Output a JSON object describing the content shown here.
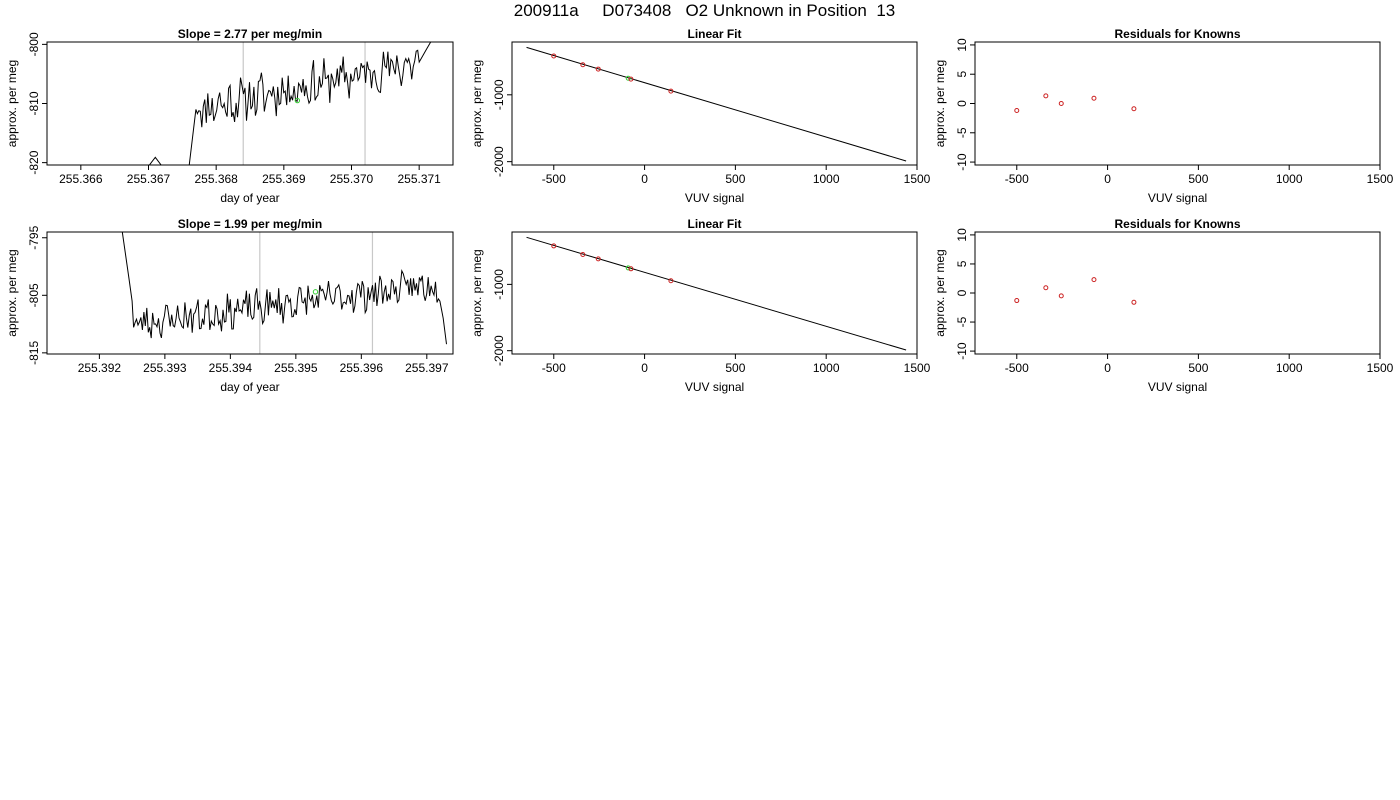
{
  "page_title": "200911a     D073408   O2 Unknown in Position  13",
  "colors": {
    "line": "#000000",
    "known_point": "#cc2222",
    "unknown_point": "#33cc33",
    "ref_line": "#c8c8c8"
  },
  "chart_data": [
    {
      "id": "ts1",
      "type": "line",
      "title": "Slope =  2.77  per meg/min",
      "xlabel": "day of year",
      "ylabel": "approx. per meg",
      "xlim": [
        255.3655,
        255.3715
      ],
      "ylim": [
        -820.4,
        -799.6
      ],
      "xticks": [
        "255.366",
        "255.367",
        "255.368",
        "255.369",
        "255.370",
        "255.371"
      ],
      "yticks": [
        "-800",
        "-810",
        "-820"
      ],
      "vlines": [
        255.3684,
        255.3702
      ],
      "unknown_marker": {
        "x": 255.3692,
        "y": -809.5
      },
      "noise": {
        "x0": 255.3677,
        "x1": 255.371,
        "n": 150,
        "start": -811,
        "end": -803,
        "amp": 3.2,
        "seed": 11
      },
      "pre": [
        [
          255.3655,
          -820.6
        ],
        [
          255.367,
          -820.6
        ],
        [
          255.3671,
          -819.1
        ],
        [
          255.3672,
          -820.6
        ],
        [
          255.3676,
          -820.6
        ],
        [
          255.3677,
          -811
        ]
      ],
      "post": [
        [
          255.371,
          -803
        ],
        [
          255.3711,
          -801
        ],
        [
          255.3712,
          -799
        ]
      ]
    },
    {
      "id": "fit1",
      "type": "scatter",
      "title": "Linear Fit",
      "xlabel": "VUV signal",
      "ylabel": "approx. per meg",
      "xlim": [
        -730,
        1500
      ],
      "ylim": [
        -2050,
        -210
      ],
      "xticks": [
        "-500",
        "0",
        "500",
        "1000",
        "1500"
      ],
      "yticks": [
        "-1000",
        "-2000"
      ],
      "line": [
        [
          -650,
          -290
        ],
        [
          1440,
          -1990
        ]
      ],
      "known_points": [
        [
          -500,
          -420
        ],
        [
          -340,
          -550
        ],
        [
          -255,
          -615
        ],
        [
          -75,
          -765
        ],
        [
          145,
          -945
        ]
      ],
      "unknown_points": [
        [
          -90,
          -752
        ]
      ]
    },
    {
      "id": "res1",
      "type": "scatter",
      "title": "Residuals for Knowns",
      "xlabel": "VUV signal",
      "ylabel": "approx. per meg",
      "xlim": [
        -730,
        1500
      ],
      "ylim": [
        -10.5,
        10.5
      ],
      "xticks": [
        "-500",
        "0",
        "500",
        "1000",
        "1500"
      ],
      "yticks": [
        "10",
        "5",
        "0",
        "-5",
        "-10"
      ],
      "known_points": [
        [
          -500,
          -1.2
        ],
        [
          -340,
          1.3
        ],
        [
          -255,
          0.0
        ],
        [
          -75,
          0.9
        ],
        [
          145,
          -0.9
        ]
      ]
    },
    {
      "id": "ts2",
      "type": "line",
      "title": "Slope =  1.99  per meg/min",
      "xlabel": "day of year",
      "ylabel": "approx. per meg",
      "xlim": [
        255.3912,
        255.3974
      ],
      "ylim": [
        -815.2,
        -794.0
      ],
      "xticks": [
        "255.392",
        "255.393",
        "255.394",
        "255.395",
        "255.396",
        "255.397"
      ],
      "yticks": [
        "-795",
        "-805",
        "-815"
      ],
      "vlines": [
        255.39445,
        255.39617
      ],
      "unknown_marker": {
        "x": 255.3953,
        "y": -804.4
      },
      "noise": {
        "x0": 255.3925,
        "x1": 255.3972,
        "n": 210,
        "start": -810,
        "end": -803,
        "amp": 2.6,
        "seed": 23
      },
      "pre": [
        [
          255.39235,
          -794
        ],
        [
          255.3924,
          -798
        ],
        [
          255.39245,
          -802
        ],
        [
          255.3925,
          -806
        ]
      ],
      "post": [
        [
          255.3972,
          -806
        ],
        [
          255.39725,
          -809
        ],
        [
          255.3973,
          -813.5
        ]
      ]
    },
    {
      "id": "fit2",
      "type": "scatter",
      "title": "Linear Fit",
      "xlabel": "VUV signal",
      "ylabel": "approx. per meg",
      "xlim": [
        -730,
        1500
      ],
      "ylim": [
        -2050,
        -210
      ],
      "xticks": [
        "-500",
        "0",
        "500",
        "1000",
        "1500"
      ],
      "yticks": [
        "-1000",
        "-2000"
      ],
      "line": [
        [
          -650,
          -290
        ],
        [
          1440,
          -1990
        ]
      ],
      "known_points": [
        [
          -500,
          -420
        ],
        [
          -340,
          -550
        ],
        [
          -255,
          -615
        ],
        [
          -75,
          -765
        ],
        [
          145,
          -945
        ]
      ],
      "unknown_points": [
        [
          -90,
          -752
        ]
      ]
    },
    {
      "id": "res2",
      "type": "scatter",
      "title": "Residuals for Knowns",
      "xlabel": "VUV signal",
      "ylabel": "approx. per meg",
      "xlim": [
        -730,
        1500
      ],
      "ylim": [
        -10.5,
        10.5
      ],
      "xticks": [
        "-500",
        "0",
        "500",
        "1000",
        "1500"
      ],
      "yticks": [
        "10",
        "5",
        "0",
        "-5",
        "-10"
      ],
      "known_points": [
        [
          -500,
          -1.3
        ],
        [
          -340,
          0.9
        ],
        [
          -255,
          -0.5
        ],
        [
          -75,
          2.3
        ],
        [
          145,
          -1.6
        ]
      ]
    }
  ]
}
